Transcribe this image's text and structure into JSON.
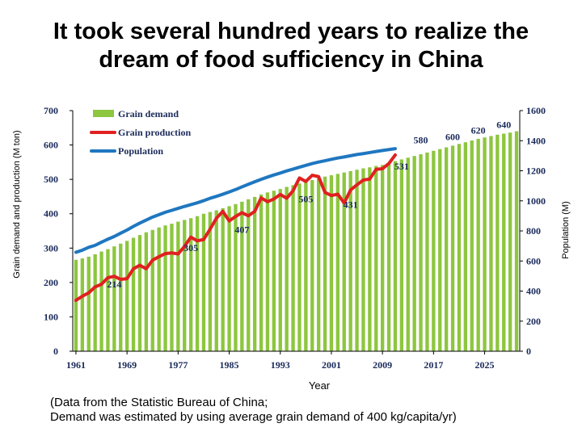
{
  "title_line1": "It took several hundred years to realize the",
  "title_line2": "dream of food sufficiency in China",
  "note_line1": "(Data from the Statistic Bureau of China;",
  "note_line2": "Demand was estimated by using average grain demand of 400 kg/capita/yr)",
  "chart_data": {
    "type": "bar",
    "xlabel": "Year",
    "ylabel": "Grain demand and production (M ton)",
    "y2label": "Population (M)",
    "ylim": [
      0,
      700
    ],
    "y2lim": [
      0,
      1600
    ],
    "xlim": [
      1961,
      2031
    ],
    "yticks": [
      0,
      100,
      200,
      300,
      400,
      500,
      600,
      700
    ],
    "y2ticks": [
      0,
      200,
      400,
      600,
      800,
      1000,
      1200,
      1400,
      1600
    ],
    "xticks": [
      1961,
      1969,
      1977,
      1985,
      1993,
      2001,
      2009,
      2017,
      2025
    ],
    "legend_position": "top-left",
    "colors": {
      "demand": "#8dc63f",
      "production": "#e02020",
      "population": "#1f77c0",
      "label": "#1a2a5a"
    },
    "series": [
      {
        "name": "Grain demand",
        "kind": "bar",
        "axis": "left",
        "x": [
          1961,
          1962,
          1963,
          1964,
          1965,
          1966,
          1967,
          1968,
          1969,
          1970,
          1971,
          1972,
          1973,
          1974,
          1975,
          1976,
          1977,
          1978,
          1979,
          1980,
          1981,
          1982,
          1983,
          1984,
          1985,
          1986,
          1987,
          1988,
          1989,
          1990,
          1991,
          1992,
          1993,
          1994,
          1995,
          1996,
          1997,
          1998,
          1999,
          2000,
          2001,
          2002,
          2003,
          2004,
          2005,
          2006,
          2007,
          2008,
          2009,
          2010,
          2011,
          2012,
          2013,
          2014,
          2015,
          2016,
          2017,
          2018,
          2019,
          2020,
          2021,
          2022,
          2023,
          2024,
          2025,
          2026,
          2027,
          2028,
          2029,
          2030
        ],
        "values": [
          266,
          270,
          275,
          282,
          290,
          297,
          305,
          313,
          321,
          330,
          338,
          346,
          353,
          360,
          366,
          371,
          377,
          382,
          387,
          393,
          400,
          405,
          410,
          416,
          422,
          428,
          435,
          442,
          449,
          456,
          462,
          467,
          472,
          478,
          483,
          488,
          493,
          498,
          503,
          508,
          512,
          516,
          520,
          524,
          528,
          532,
          535,
          539,
          542,
          548,
          553,
          558,
          563,
          568,
          573,
          578,
          583,
          588,
          593,
          598,
          603,
          608,
          613,
          618,
          622,
          626,
          630,
          633,
          636,
          640
        ]
      },
      {
        "name": "Grain production",
        "kind": "line",
        "axis": "left",
        "x": [
          1961,
          1962,
          1963,
          1964,
          1965,
          1966,
          1967,
          1968,
          1969,
          1970,
          1971,
          1972,
          1973,
          1974,
          1975,
          1976,
          1977,
          1978,
          1979,
          1980,
          1981,
          1982,
          1983,
          1984,
          1985,
          1986,
          1987,
          1988,
          1989,
          1990,
          1991,
          1992,
          1993,
          1994,
          1995,
          1996,
          1997,
          1998,
          1999,
          2000,
          2001,
          2002,
          2003,
          2004,
          2005,
          2006,
          2007,
          2008,
          2009,
          2010,
          2011
        ],
        "values": [
          148,
          160,
          170,
          187,
          195,
          214,
          218,
          209,
          211,
          240,
          250,
          240,
          265,
          275,
          284,
          286,
          283,
          305,
          332,
          321,
          325,
          355,
          387,
          407,
          379,
          392,
          403,
          394,
          407,
          446,
          435,
          443,
          456,
          445,
          467,
          504,
          494,
          512,
          508,
          462,
          453,
          457,
          431,
          469,
          484,
          498,
          501,
          529,
          531,
          546,
          571
        ]
      },
      {
        "name": "Population",
        "kind": "line",
        "axis": "right",
        "x": [
          1961,
          1962,
          1963,
          1964,
          1965,
          1966,
          1967,
          1968,
          1969,
          1970,
          1971,
          1972,
          1973,
          1974,
          1975,
          1976,
          1977,
          1978,
          1979,
          1980,
          1981,
          1982,
          1983,
          1984,
          1985,
          1986,
          1987,
          1988,
          1989,
          1990,
          1991,
          1992,
          1993,
          1994,
          1995,
          1996,
          1997,
          1998,
          1999,
          2000,
          2001,
          2002,
          2003,
          2004,
          2005,
          2006,
          2007,
          2008,
          2009,
          2010,
          2011
        ],
        "values": [
          658,
          672,
          691,
          704,
          725,
          745,
          763,
          785,
          806,
          830,
          852,
          872,
          892,
          908,
          924,
          937,
          950,
          963,
          975,
          987,
          1001,
          1017,
          1030,
          1044,
          1059,
          1075,
          1093,
          1110,
          1127,
          1143,
          1158,
          1172,
          1185,
          1199,
          1211,
          1224,
          1236,
          1248,
          1258,
          1267,
          1276,
          1285,
          1292,
          1300,
          1308,
          1314,
          1321,
          1328,
          1335,
          1341,
          1347
        ]
      }
    ],
    "annotations": [
      {
        "label": "214",
        "x": 1967,
        "y": 195,
        "axis": "left"
      },
      {
        "label": "305",
        "x": 1979,
        "y": 301,
        "axis": "left"
      },
      {
        "label": "407",
        "x": 1987,
        "y": 353,
        "axis": "left"
      },
      {
        "label": "505",
        "x": 1997,
        "y": 443,
        "axis": "left"
      },
      {
        "label": "431",
        "x": 2004,
        "y": 426,
        "axis": "left"
      },
      {
        "label": "531",
        "x": 2012,
        "y": 538,
        "axis": "left"
      },
      {
        "label": "580",
        "x": 2015,
        "y": 614,
        "axis": "left"
      },
      {
        "label": "600",
        "x": 2020,
        "y": 624,
        "axis": "left"
      },
      {
        "label": "620",
        "x": 2024,
        "y": 642,
        "axis": "left"
      },
      {
        "label": "640",
        "x": 2028,
        "y": 659,
        "axis": "left"
      }
    ]
  }
}
